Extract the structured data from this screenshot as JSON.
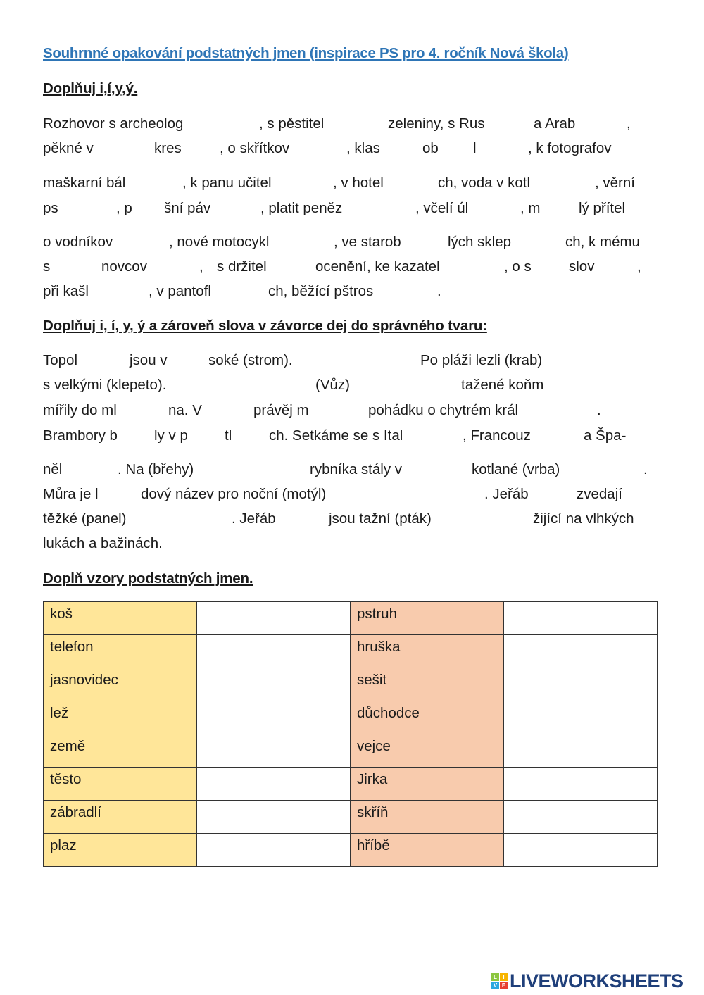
{
  "title": "Souhrnné opakování podstatných jmen (inspirace PS pro 4. ročník Nová škola)",
  "section1": {
    "heading": "Doplňuj i,í,y,ý.",
    "lines": [
      [
        "Rozhovor s archeolog",
        ", s pěstitel",
        "zeleniny, s Rus",
        "a Arab",
        ","
      ],
      [
        "pěkné v",
        "kres",
        ", o skřítkov",
        ", klas",
        "ob",
        "l",
        ", k fotografov"
      ],
      [
        "maškarní bál",
        ", k panu učitel",
        ", v hotel",
        "ch, voda v kotl",
        ", věrní"
      ],
      [
        "ps",
        ", p",
        "šní páv",
        ", platit peněz",
        ", včelí úl",
        ", m",
        "lý přítel"
      ],
      [
        "o vodníkov",
        ", nové motocykl",
        ", ve starob",
        "lých sklep",
        "ch, k mému"
      ],
      [
        "s",
        "novcov",
        ",",
        "s držitel",
        "ocenění, ke kazatel",
        ", o s",
        "slov",
        ","
      ],
      [
        "při kašl",
        ", v pantofl",
        "ch, běžící pštros",
        "."
      ]
    ]
  },
  "section2": {
    "heading": "Doplňuj i, í, y, ý a zároveň slova v závorce dej do správného tvaru:",
    "lines": [
      [
        "Topol",
        "jsou v",
        "soké  (strom).",
        "Po pláži lezli (krab)"
      ],
      [
        "s velkými (klepeto).",
        "(Vůz)",
        "tažené koňm"
      ],
      [
        "mířily do ml",
        "na. V",
        "právěj m",
        "pohádku o chytrém král",
        "."
      ],
      [
        "Brambory b",
        "ly v p",
        "tl",
        "ch. Setkáme se s Ital",
        ", Francouz",
        "a Špa-"
      ],
      [
        "něl",
        ". Na (břehy)",
        "rybníka stály v",
        "kotlané (vrba)",
        "."
      ],
      [
        "Můra je l",
        "dový název pro noční (motýl)",
        ". Jeřáb",
        "zvedají"
      ],
      [
        "těžké (panel)",
        ". Jeřáb",
        "jsou tažní (pták)",
        "žijící na vlhkých"
      ],
      [
        "lukách a bažinách."
      ]
    ]
  },
  "section3": {
    "heading": "Doplň vzory podstatných jmen.",
    "rows": [
      [
        "koš",
        "",
        "pstruh",
        ""
      ],
      [
        "telefon",
        "",
        "hruška",
        ""
      ],
      [
        "jasnovidec",
        "",
        "sešit",
        ""
      ],
      [
        "lež",
        "",
        "důchodce",
        ""
      ],
      [
        "země",
        "",
        "vejce",
        ""
      ],
      [
        "těsto",
        "",
        "Jirka",
        ""
      ],
      [
        "zábradlí",
        "",
        "skříň",
        ""
      ],
      [
        "plaz",
        "",
        "hříbě",
        ""
      ]
    ],
    "colors": {
      "left": "#FFE699",
      "right": "#F8CBAD"
    }
  },
  "footer": {
    "logo_text": "LIVEWORKSHEETS",
    "logo_cubes": [
      "L",
      "I",
      "V",
      "E"
    ]
  }
}
